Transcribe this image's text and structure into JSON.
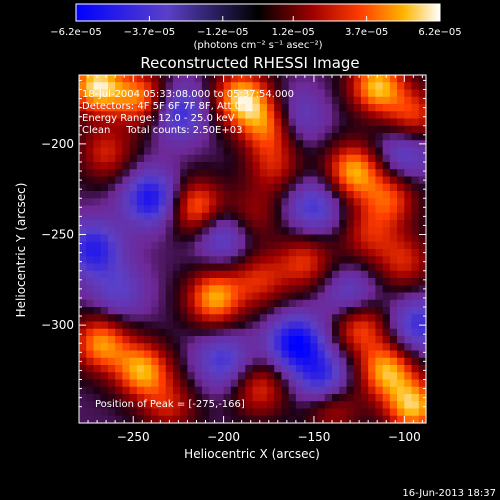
{
  "chart_data": {
    "type": "heatmap",
    "title": "Reconstructed RHESSI Image",
    "xlabel": "Heliocentric X (arcsec)",
    "ylabel": "Heliocentric Y (arcsec)",
    "xlim": [
      -280,
      -88
    ],
    "ylim": [
      -354,
      -162
    ],
    "x_ticks": [
      -250,
      -200,
      -150,
      -100
    ],
    "y_ticks": [
      -200,
      -250,
      -300
    ],
    "x_tick_labels": [
      "−250",
      "−200",
      "−150",
      "−100"
    ],
    "y_tick_labels": [
      "−200",
      "−250",
      "−300"
    ],
    "colorbar": {
      "min": -6.2e-05,
      "max": 6.2e-05,
      "tick_values": [
        -6.2e-05,
        -3.7e-05,
        -1.2e-05,
        1.2e-05,
        3.7e-05,
        6.2e-05
      ],
      "tick_labels": [
        "−6.2e−05",
        "−3.7e−05",
        "−1.2e−05",
        "1.2e−05",
        "3.7e−05",
        "6.2e−05"
      ],
      "units": "(photons cm⁻² s⁻¹ asec⁻²)"
    },
    "annotations": [
      "18-Jul-2004 05:33:08.000 to 05:37:54.000",
      "Detectors: 4F 5F 6F 7F 8F, Att 0",
      "Energy Range: 12.0 - 25.0 keV",
      "Clean     Total counts: 2.50E+03"
    ],
    "peak_label": "Position of Peak = [-275,-166]",
    "peak": [
      -275,
      -166
    ],
    "blobs": [
      {
        "x": -270,
        "y": -168,
        "v": 1.0
      },
      {
        "x": -245,
        "y": -175,
        "v": 0.75
      },
      {
        "x": -190,
        "y": -175,
        "v": 0.95
      },
      {
        "x": -175,
        "y": -190,
        "v": 0.7
      },
      {
        "x": -115,
        "y": -168,
        "v": 0.9
      },
      {
        "x": -95,
        "y": -185,
        "v": 0.6
      },
      {
        "x": -265,
        "y": -205,
        "v": 0.5
      },
      {
        "x": -172,
        "y": -213,
        "v": 0.45
      },
      {
        "x": -128,
        "y": -215,
        "v": 0.85
      },
      {
        "x": -108,
        "y": -230,
        "v": 0.6
      },
      {
        "x": -215,
        "y": -235,
        "v": 0.75
      },
      {
        "x": -185,
        "y": -240,
        "v": 0.4
      },
      {
        "x": -155,
        "y": -265,
        "v": 0.55
      },
      {
        "x": -120,
        "y": -250,
        "v": 0.45
      },
      {
        "x": -100,
        "y": -265,
        "v": 0.5
      },
      {
        "x": -205,
        "y": -285,
        "v": 0.85
      },
      {
        "x": -180,
        "y": -275,
        "v": 0.5
      },
      {
        "x": -268,
        "y": -310,
        "v": 0.8
      },
      {
        "x": -245,
        "y": -325,
        "v": 0.85
      },
      {
        "x": -180,
        "y": -335,
        "v": 0.55
      },
      {
        "x": -125,
        "y": -300,
        "v": 0.7
      },
      {
        "x": -110,
        "y": -325,
        "v": 0.85
      },
      {
        "x": -95,
        "y": -345,
        "v": 0.9
      },
      {
        "x": -230,
        "y": -345,
        "v": 0.45
      },
      {
        "x": -140,
        "y": -345,
        "v": 0.5
      },
      {
        "x": -225,
        "y": -182,
        "v": -0.65
      },
      {
        "x": -240,
        "y": -230,
        "v": -0.8
      },
      {
        "x": -272,
        "y": -258,
        "v": -0.7
      },
      {
        "x": -150,
        "y": -235,
        "v": -0.55
      },
      {
        "x": -200,
        "y": -250,
        "v": -0.55
      },
      {
        "x": -160,
        "y": -310,
        "v": -0.9
      },
      {
        "x": -130,
        "y": -285,
        "v": -0.5
      },
      {
        "x": -258,
        "y": -282,
        "v": -0.4
      },
      {
        "x": -200,
        "y": -320,
        "v": -0.55
      },
      {
        "x": -92,
        "y": -300,
        "v": -0.6
      },
      {
        "x": -160,
        "y": -185,
        "v": -0.45
      },
      {
        "x": -145,
        "y": -330,
        "v": -0.7
      },
      {
        "x": -100,
        "y": -205,
        "v": -0.5
      }
    ]
  },
  "footer": {
    "date": "16-Jun-2013 18:37"
  }
}
